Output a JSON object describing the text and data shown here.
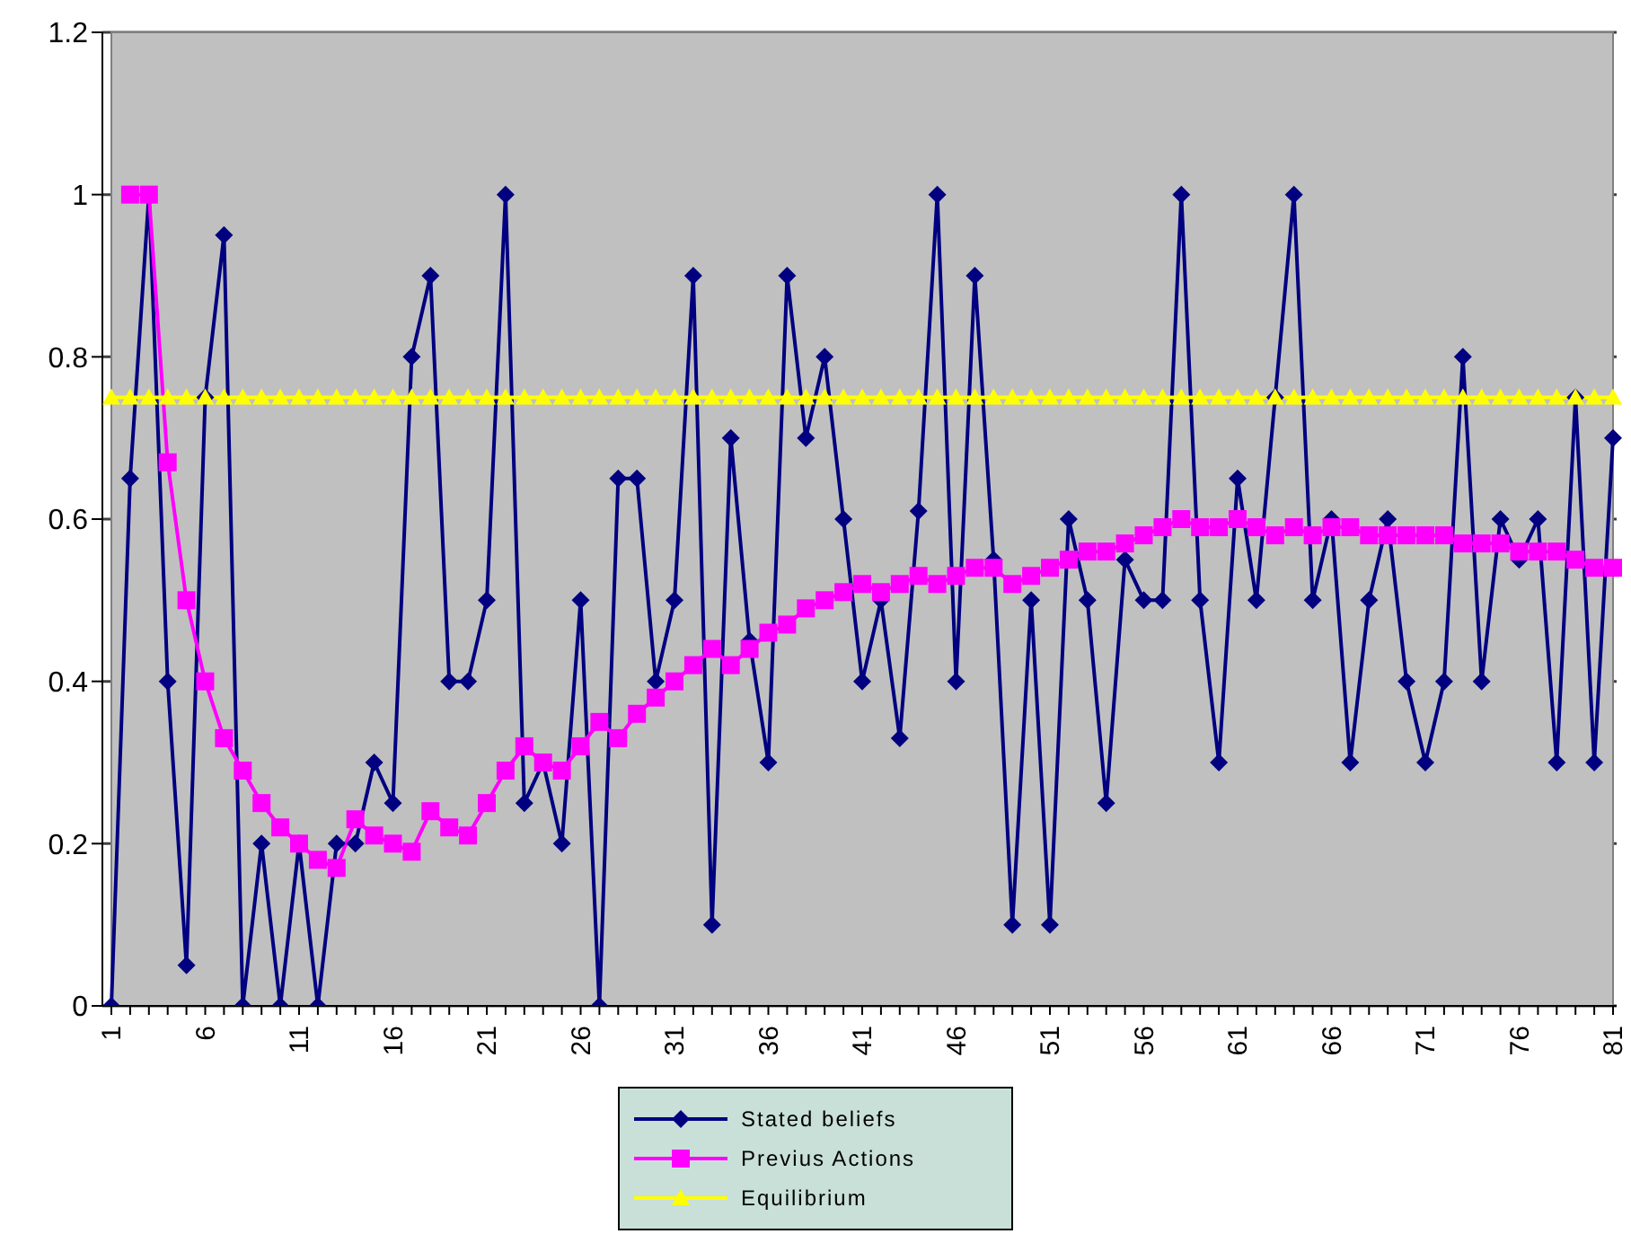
{
  "chart_data": {
    "type": "line",
    "categories": [
      "1",
      null,
      null,
      null,
      null,
      "6",
      null,
      null,
      null,
      null,
      "11",
      null,
      null,
      null,
      null,
      "16",
      null,
      null,
      null,
      null,
      "21",
      null,
      null,
      null,
      null,
      "26",
      null,
      null,
      null,
      null,
      "31",
      null,
      null,
      null,
      null,
      "36",
      null,
      null,
      null,
      null,
      "41",
      null,
      null,
      null,
      null,
      "46",
      null,
      null,
      null,
      null,
      "51",
      null,
      null,
      null,
      null,
      "56",
      null,
      null,
      null,
      null,
      "61",
      null,
      null,
      null,
      null,
      "66",
      null,
      null,
      null,
      null,
      "71",
      null,
      null,
      null,
      null,
      "76",
      null,
      null,
      null,
      null,
      "81"
    ],
    "series": [
      {
        "name": "Stated beliefs",
        "color": "#000080",
        "marker": "diamond",
        "values": [
          0,
          0.65,
          1,
          0.4,
          0.05,
          0.75,
          0.95,
          0,
          0.2,
          0,
          0.2,
          0,
          0.2,
          0.2,
          0.3,
          0.25,
          0.8,
          0.9,
          0.4,
          0.4,
          0.5,
          1,
          0.25,
          0.3,
          0.2,
          0.5,
          0,
          0.65,
          0.65,
          0.4,
          0.5,
          0.9,
          0.1,
          0.7,
          0.45,
          0.3,
          0.9,
          0.7,
          0.8,
          0.6,
          0.4,
          0.5,
          0.33,
          0.61,
          1,
          0.4,
          0.9,
          0.55,
          0.1,
          0.5,
          0.1,
          0.6,
          0.5,
          0.25,
          0.55,
          0.5,
          0.5,
          1,
          0.5,
          0.3,
          0.65,
          0.5,
          0.75,
          1,
          0.5,
          0.6,
          0.3,
          0.5,
          0.6,
          0.4,
          0.3,
          0.4,
          0.8,
          0.4,
          0.6,
          0.55,
          0.6,
          0.3,
          0.75,
          0.3,
          0.7
        ]
      },
      {
        "name": "Previus Actions",
        "color": "#ff00ff",
        "marker": "square",
        "values": [
          null,
          1,
          1,
          0.67,
          0.5,
          0.4,
          0.33,
          0.29,
          0.25,
          0.22,
          0.2,
          0.18,
          0.17,
          0.23,
          0.21,
          0.2,
          0.19,
          0.24,
          0.22,
          0.21,
          0.25,
          0.29,
          0.32,
          0.3,
          0.29,
          0.32,
          0.35,
          0.33,
          0.36,
          0.38,
          0.4,
          0.42,
          0.44,
          0.42,
          0.44,
          0.46,
          0.47,
          0.49,
          0.5,
          0.51,
          0.52,
          0.51,
          0.52,
          0.53,
          0.52,
          0.53,
          0.54,
          0.54,
          0.52,
          0.53,
          0.54,
          0.55,
          0.56,
          0.56,
          0.57,
          0.58,
          0.59,
          0.6,
          0.59,
          0.59,
          0.6,
          0.59,
          0.58,
          0.59,
          0.58,
          0.59,
          0.59,
          0.58,
          0.58,
          0.58,
          0.58,
          0.58,
          0.57,
          0.57,
          0.57,
          0.56,
          0.56,
          0.56,
          0.55,
          0.54,
          0.54
        ]
      },
      {
        "name": "Equilibrium",
        "color": "#ffff00",
        "marker": "triangle",
        "values": [
          0.75,
          0.75,
          0.75,
          0.75,
          0.75,
          0.75,
          0.75,
          0.75,
          0.75,
          0.75,
          0.75,
          0.75,
          0.75,
          0.75,
          0.75,
          0.75,
          0.75,
          0.75,
          0.75,
          0.75,
          0.75,
          0.75,
          0.75,
          0.75,
          0.75,
          0.75,
          0.75,
          0.75,
          0.75,
          0.75,
          0.75,
          0.75,
          0.75,
          0.75,
          0.75,
          0.75,
          0.75,
          0.75,
          0.75,
          0.75,
          0.75,
          0.75,
          0.75,
          0.75,
          0.75,
          0.75,
          0.75,
          0.75,
          0.75,
          0.75,
          0.75,
          0.75,
          0.75,
          0.75,
          0.75,
          0.75,
          0.75,
          0.75,
          0.75,
          0.75,
          0.75,
          0.75,
          0.75,
          0.75,
          0.75,
          0.75,
          0.75,
          0.75,
          0.75,
          0.75,
          0.75,
          0.75,
          0.75,
          0.75,
          0.75,
          0.75,
          0.75,
          0.75,
          0.75,
          0.75,
          0.75
        ]
      }
    ],
    "ylim": [
      0,
      1.2
    ],
    "yticks": [
      0,
      0.2,
      0.4,
      0.6,
      0.8,
      1,
      1.2
    ],
    "grid": "y",
    "legend": "bottom"
  }
}
